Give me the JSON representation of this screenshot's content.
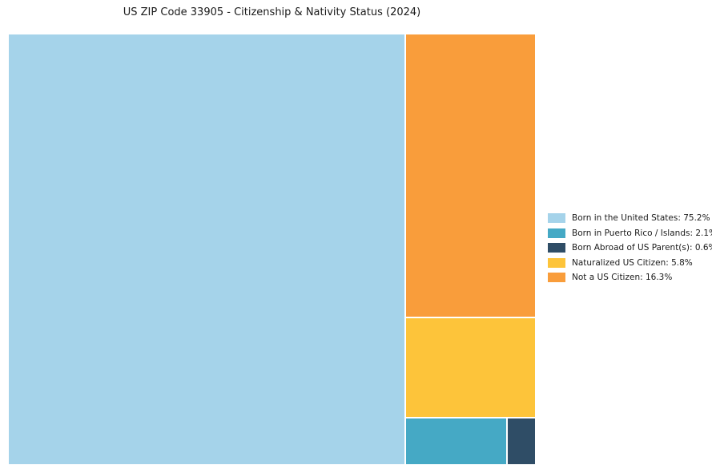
{
  "title": "US ZIP Code 33905 - Citizenship & Nativity Status (2024)",
  "chart_data": {
    "type": "treemap",
    "title": "US ZIP Code 33905 - Citizenship & Nativity Status (2024)",
    "total": 100,
    "legend_position": "right",
    "series": [
      {
        "label": "Born in the United States",
        "value": 75.2,
        "color": "#a5d3ea",
        "legend_label": "Born in the United States: 75.2%"
      },
      {
        "label": "Born in Puerto Rico / Islands",
        "value": 2.1,
        "color": "#45a9c5",
        "legend_label": "Born in Puerto Rico / Islands: 2.1%"
      },
      {
        "label": "Born Abroad of US Parent(s)",
        "value": 0.6,
        "color": "#2f4d66",
        "legend_label": "Born Abroad of US Parent(s): 0.6%"
      },
      {
        "label": "Naturalized US Citizen",
        "value": 5.8,
        "color": "#fdc43a",
        "legend_label": "Naturalized US Citizen: 5.8%"
      },
      {
        "label": "Not a US Citizen",
        "value": 16.3,
        "color": "#f99d3b",
        "legend_label": "Not a US Citizen: 16.3%"
      }
    ]
  }
}
